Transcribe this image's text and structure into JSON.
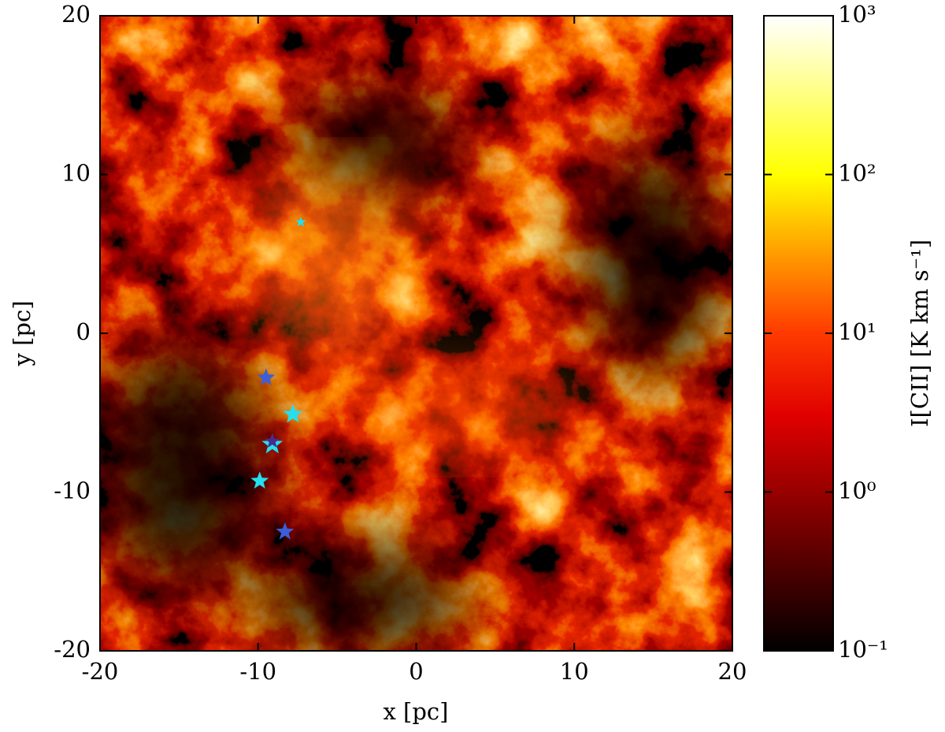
{
  "chart_data": {
    "type": "image-scatter",
    "x_label": "x [pc]",
    "y_label": "y [pc]",
    "xlim": [
      -20,
      20
    ],
    "ylim": [
      -20,
      20
    ],
    "xticks": [
      -20,
      -10,
      0,
      10,
      20
    ],
    "yticks": [
      -20,
      -10,
      0,
      10,
      20
    ],
    "colorbar": {
      "label": "I[CII] [K km s⁻¹]",
      "colormap": "hot",
      "log_scale": true,
      "lim": [
        0.1,
        1000
      ],
      "ticks": [
        {
          "value": 0.1,
          "label": "10⁻¹"
        },
        {
          "value": 1,
          "label": "10⁰"
        },
        {
          "value": 10,
          "label": "10¹"
        },
        {
          "value": 100,
          "label": "10²"
        },
        {
          "value": 1000,
          "label": "10³"
        }
      ]
    },
    "series": [
      {
        "color": "#22e0f0",
        "x": [
          -7.3,
          -7.8,
          -9.1,
          -9.9
        ],
        "values": [
          7.0,
          -5.1,
          -7.0,
          -9.3
        ],
        "sizes": [
          7,
          13,
          14,
          12
        ]
      },
      {
        "color": "#3a5fd8",
        "x": [
          -9.5,
          -8.3
        ],
        "values": [
          -2.8,
          -12.5
        ],
        "sizes": [
          12,
          12
        ]
      },
      {
        "color": "#4b2a8c",
        "x": [
          -9.1
        ],
        "values": [
          -6.8
        ],
        "sizes": [
          10
        ]
      }
    ]
  }
}
